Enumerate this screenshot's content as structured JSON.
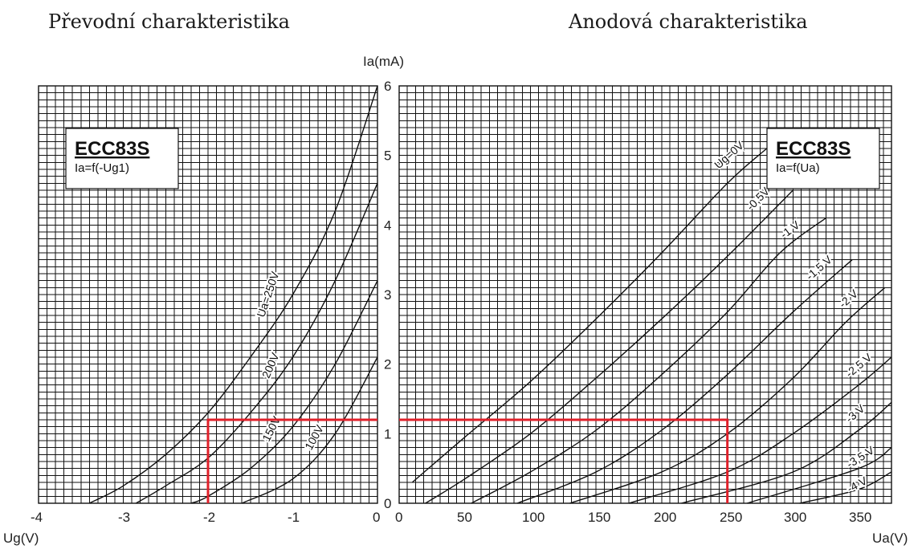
{
  "titles": {
    "left": "Převodní charakteristika",
    "right": "Anodová charakteristika"
  },
  "boxes": {
    "left": {
      "title": "ECC83S",
      "formula": "Ia=f(-Ug1)"
    },
    "right": {
      "title": "ECC83S",
      "formula": "Ia=f(Ua)"
    }
  },
  "axes": {
    "ia_label": "Ia(mA)",
    "ug_label": "Ug(V)",
    "ua_label": "Ua(V)"
  },
  "chart_data": [
    {
      "type": "line",
      "title": "Převodní charakteristika",
      "xlabel": "Ug(V)",
      "ylabel": "Ia(mA)",
      "xlim": [
        -4,
        0
      ],
      "ylim": [
        0,
        6
      ],
      "x_ticks": [
        "-4",
        "-3",
        "-2",
        "-1",
        "0"
      ],
      "y_ticks": [
        "0",
        "1",
        "2",
        "3",
        "4",
        "5",
        "6"
      ],
      "grid": true,
      "series": [
        {
          "name": "Ua=250V",
          "points": [
            [
              -3.4,
              0
            ],
            [
              -3,
              0.25
            ],
            [
              -2.5,
              0.7
            ],
            [
              -2,
              1.3
            ],
            [
              -1.5,
              2.1
            ],
            [
              -1,
              3.0
            ],
            [
              -0.5,
              4.2
            ],
            [
              0,
              6.0
            ]
          ]
        },
        {
          "name": "200V",
          "points": [
            [
              -2.85,
              0
            ],
            [
              -2.5,
              0.25
            ],
            [
              -2,
              0.65
            ],
            [
              -1.5,
              1.3
            ],
            [
              -1,
              2.1
            ],
            [
              -0.5,
              3.2
            ],
            [
              0,
              4.6
            ]
          ]
        },
        {
          "name": "150V",
          "points": [
            [
              -2.2,
              0
            ],
            [
              -2,
              0.1
            ],
            [
              -1.5,
              0.5
            ],
            [
              -1,
              1.1
            ],
            [
              -0.5,
              2.0
            ],
            [
              0,
              3.2
            ]
          ]
        },
        {
          "name": "100V",
          "points": [
            [
              -1.6,
              0
            ],
            [
              -1,
              0.35
            ],
            [
              -0.5,
              1.0
            ],
            [
              0,
              2.1
            ]
          ]
        }
      ],
      "operating_point": {
        "x": -2,
        "y": 1.2
      }
    },
    {
      "type": "line",
      "title": "Anodová charakteristika",
      "xlabel": "Ua(V)",
      "ylabel": "Ia(mA)",
      "xlim": [
        0,
        375
      ],
      "ylim": [
        0,
        6
      ],
      "x_ticks": [
        "0",
        "50",
        "100",
        "150",
        "200",
        "250",
        "300",
        "350"
      ],
      "y_ticks": [
        "0",
        "1",
        "2",
        "3",
        "4",
        "5",
        "6"
      ],
      "grid": true,
      "series": [
        {
          "name": "Ug=0V",
          "points": [
            [
              10,
              0.3
            ],
            [
              50,
              0.95
            ],
            [
              100,
              1.75
            ],
            [
              150,
              2.65
            ],
            [
              200,
              3.6
            ],
            [
              250,
              4.6
            ],
            [
              280,
              5.1
            ]
          ]
        },
        {
          "name": "-0,5V",
          "points": [
            [
              20,
              0
            ],
            [
              50,
              0.35
            ],
            [
              100,
              1.0
            ],
            [
              150,
              1.8
            ],
            [
              200,
              2.65
            ],
            [
              250,
              3.55
            ],
            [
              300,
              4.5
            ]
          ]
        },
        {
          "name": "-1 V",
          "points": [
            [
              55,
              0
            ],
            [
              100,
              0.45
            ],
            [
              150,
              1.05
            ],
            [
              200,
              1.85
            ],
            [
              250,
              2.75
            ],
            [
              290,
              3.6
            ],
            [
              325,
              4.1
            ]
          ]
        },
        {
          "name": "-1,5 V",
          "points": [
            [
              90,
              0
            ],
            [
              150,
              0.45
            ],
            [
              200,
              1.05
            ],
            [
              250,
              1.85
            ],
            [
              300,
              2.75
            ],
            [
              345,
              3.5
            ]
          ]
        },
        {
          "name": "-2 V",
          "points": [
            [
              130,
              0
            ],
            [
              200,
              0.45
            ],
            [
              250,
              1.0
            ],
            [
              300,
              1.8
            ],
            [
              340,
              2.6
            ],
            [
              370,
              3.1
            ]
          ]
        },
        {
          "name": "-2,5 V",
          "points": [
            [
              175,
              0
            ],
            [
              250,
              0.45
            ],
            [
              300,
              1.0
            ],
            [
              350,
              1.7
            ],
            [
              375,
              2.1
            ]
          ]
        },
        {
          "name": "-3 V",
          "points": [
            [
              215,
              0
            ],
            [
              300,
              0.45
            ],
            [
              350,
              1.05
            ],
            [
              375,
              1.45
            ]
          ]
        },
        {
          "name": "-3,5 V",
          "points": [
            [
              265,
              0
            ],
            [
              350,
              0.5
            ],
            [
              375,
              0.8
            ]
          ]
        },
        {
          "name": "-4 V",
          "points": [
            [
              305,
              0
            ],
            [
              350,
              0.2
            ],
            [
              375,
              0.45
            ]
          ]
        }
      ],
      "operating_point": {
        "x": 250,
        "y": 1.2
      }
    }
  ]
}
